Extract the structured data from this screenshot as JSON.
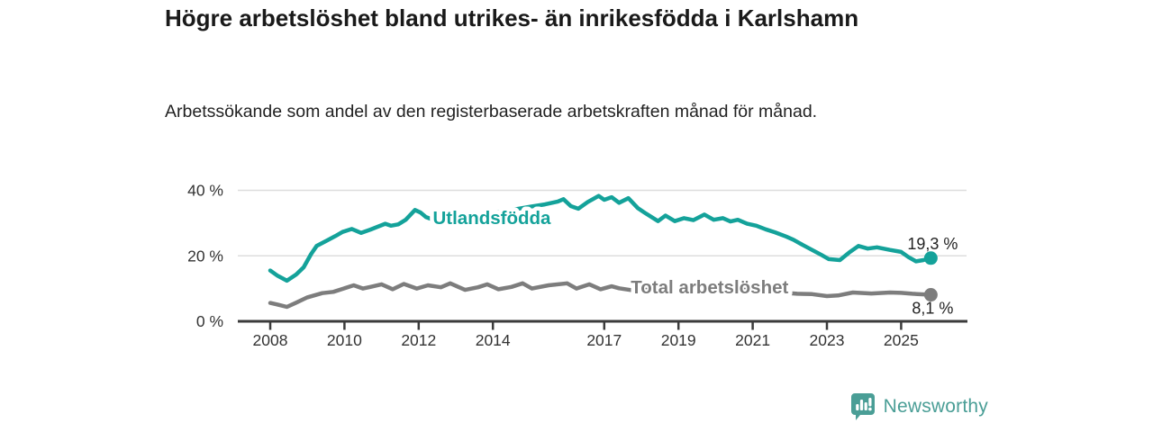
{
  "header": {
    "title": "Högre arbetslöshet bland utrikes- än inrikesfödda i Karlshamn",
    "subtitle": "Arbetssökande som andel av den registerbaserade arbetskraften månad för månad."
  },
  "chart_data": {
    "type": "line",
    "title": "Högre arbetslöshet bland utrikes- än inrikesfödda i Karlshamn",
    "subtitle": "Arbetssökande som andel av den registerbaserade arbetskraften månad för månad.",
    "unit": "%",
    "x_tick_years": [
      2008,
      2010,
      2012,
      2014,
      2017,
      2019,
      2021,
      2023,
      2025
    ],
    "y_ticks": [
      {
        "value": 0,
        "label": "0 %"
      },
      {
        "value": 20,
        "label": "20 %"
      },
      {
        "value": 40,
        "label": "40 %"
      }
    ],
    "xlim": [
      2008.0,
      2025.8
    ],
    "ylim": [
      0,
      40
    ],
    "grid": "horizontal",
    "legend_position": "inline-labels",
    "colors": {
      "utlandsfodda": "#14a29a",
      "total": "#7d7d7d",
      "gridline": "#dedede",
      "axis": "#3b3b3b",
      "tick_text": "#333333",
      "annotation_text": "#222222"
    },
    "series": [
      {
        "name": "Utlandsfödda",
        "color": "#14a29a",
        "end_label": "19,3 %",
        "end_value": 19.3,
        "label_anchor": {
          "year": 2013.97,
          "value": 31.6
        },
        "points": [
          [
            2008.0,
            15.5
          ],
          [
            2008.2,
            13.9
          ],
          [
            2008.45,
            12.4
          ],
          [
            2008.7,
            14.3
          ],
          [
            2008.9,
            16.5
          ],
          [
            2009.1,
            20.5
          ],
          [
            2009.25,
            23.0
          ],
          [
            2009.5,
            24.5
          ],
          [
            2009.75,
            26.0
          ],
          [
            2009.95,
            27.3
          ],
          [
            2010.2,
            28.2
          ],
          [
            2010.45,
            27.0
          ],
          [
            2010.7,
            28.0
          ],
          [
            2011.1,
            29.8
          ],
          [
            2011.25,
            29.2
          ],
          [
            2011.45,
            29.6
          ],
          [
            2011.65,
            31.0
          ],
          [
            2011.9,
            34.0
          ],
          [
            2012.05,
            33.2
          ],
          [
            2012.2,
            31.8
          ],
          [
            2012.45,
            30.8
          ],
          [
            2012.7,
            31.5
          ],
          [
            2013.0,
            32.3
          ],
          [
            2013.4,
            31.8
          ],
          [
            2013.8,
            33.0
          ],
          [
            2014.2,
            33.3
          ],
          [
            2014.6,
            34.2
          ],
          [
            2015.0,
            35.0
          ],
          [
            2015.4,
            35.7
          ],
          [
            2015.75,
            36.6
          ],
          [
            2015.9,
            37.3
          ],
          [
            2016.1,
            35.2
          ],
          [
            2016.3,
            34.4
          ],
          [
            2016.55,
            36.4
          ],
          [
            2016.85,
            38.3
          ],
          [
            2017.0,
            37.1
          ],
          [
            2017.2,
            37.9
          ],
          [
            2017.4,
            36.2
          ],
          [
            2017.65,
            37.6
          ],
          [
            2017.9,
            34.6
          ],
          [
            2018.1,
            33.1
          ],
          [
            2018.45,
            30.6
          ],
          [
            2018.65,
            32.3
          ],
          [
            2018.9,
            30.6
          ],
          [
            2019.15,
            31.5
          ],
          [
            2019.4,
            30.9
          ],
          [
            2019.7,
            32.6
          ],
          [
            2019.95,
            31.0
          ],
          [
            2020.2,
            31.5
          ],
          [
            2020.4,
            30.5
          ],
          [
            2020.6,
            31.0
          ],
          [
            2020.85,
            29.8
          ],
          [
            2021.1,
            29.2
          ],
          [
            2021.35,
            28.1
          ],
          [
            2021.6,
            27.2
          ],
          [
            2021.9,
            25.9
          ],
          [
            2022.1,
            24.9
          ],
          [
            2022.35,
            23.3
          ],
          [
            2022.6,
            21.8
          ],
          [
            2022.85,
            20.3
          ],
          [
            2023.05,
            19.0
          ],
          [
            2023.35,
            18.7
          ],
          [
            2023.6,
            21.0
          ],
          [
            2023.85,
            23.0
          ],
          [
            2024.1,
            22.2
          ],
          [
            2024.35,
            22.6
          ],
          [
            2024.7,
            21.8
          ],
          [
            2025.0,
            21.2
          ],
          [
            2025.2,
            19.6
          ],
          [
            2025.4,
            18.3
          ],
          [
            2025.6,
            18.7
          ],
          [
            2025.8,
            19.3
          ]
        ]
      },
      {
        "name": "Total arbetslöshet",
        "color": "#7d7d7d",
        "end_label": "8,1 %",
        "end_value": 8.1,
        "label_anchor": {
          "year": 2019.84,
          "value": 10.4
        },
        "points": [
          [
            2008.0,
            5.6
          ],
          [
            2008.2,
            5.1
          ],
          [
            2008.45,
            4.4
          ],
          [
            2008.7,
            5.7
          ],
          [
            2009.0,
            7.3
          ],
          [
            2009.4,
            8.6
          ],
          [
            2009.7,
            9.0
          ],
          [
            2009.95,
            9.9
          ],
          [
            2010.25,
            11.0
          ],
          [
            2010.5,
            10.0
          ],
          [
            2010.7,
            10.5
          ],
          [
            2011.0,
            11.3
          ],
          [
            2011.3,
            9.8
          ],
          [
            2011.6,
            11.4
          ],
          [
            2011.95,
            10.0
          ],
          [
            2012.25,
            11.0
          ],
          [
            2012.6,
            10.4
          ],
          [
            2012.85,
            11.6
          ],
          [
            2013.25,
            9.6
          ],
          [
            2013.6,
            10.4
          ],
          [
            2013.85,
            11.3
          ],
          [
            2014.15,
            9.8
          ],
          [
            2014.5,
            10.5
          ],
          [
            2014.8,
            11.6
          ],
          [
            2015.05,
            10.0
          ],
          [
            2015.5,
            11.0
          ],
          [
            2016.0,
            11.6
          ],
          [
            2016.25,
            10.0
          ],
          [
            2016.6,
            11.3
          ],
          [
            2016.9,
            9.8
          ],
          [
            2017.2,
            10.7
          ],
          [
            2017.4,
            10.1
          ],
          [
            2017.8,
            9.4
          ],
          [
            2018.2,
            9.9
          ],
          [
            2018.6,
            9.1
          ],
          [
            2019.0,
            9.7
          ],
          [
            2019.5,
            8.9
          ],
          [
            2020.0,
            9.3
          ],
          [
            2020.4,
            10.2
          ],
          [
            2020.9,
            9.9
          ],
          [
            2021.3,
            9.4
          ],
          [
            2021.7,
            8.9
          ],
          [
            2022.0,
            8.6
          ],
          [
            2022.2,
            8.4
          ],
          [
            2022.6,
            8.3
          ],
          [
            2023.0,
            7.7
          ],
          [
            2023.3,
            7.9
          ],
          [
            2023.7,
            8.8
          ],
          [
            2024.2,
            8.5
          ],
          [
            2024.7,
            8.8
          ],
          [
            2025.0,
            8.7
          ],
          [
            2025.3,
            8.4
          ],
          [
            2025.8,
            8.1
          ]
        ]
      }
    ]
  },
  "footer": {
    "brand": "Newsworthy",
    "brand_color": "#4a9e96"
  }
}
